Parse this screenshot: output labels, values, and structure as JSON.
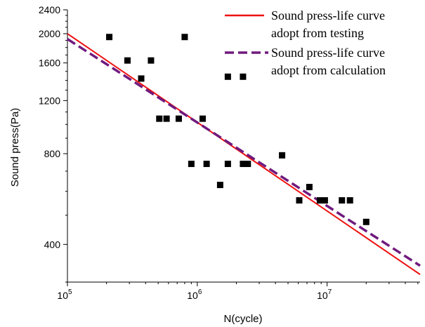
{
  "chart_data": {
    "type": "scatter",
    "xlabel": "N(cycle)",
    "ylabel": "Sound press(Pa)",
    "x_scale": "log",
    "y_scale": "log",
    "xlim": [
      100000,
      52000000
    ],
    "ylim": [
      300,
      2400
    ],
    "x_ticks": [
      {
        "value": 100000,
        "base": "10",
        "exp": "5"
      },
      {
        "value": 1000000,
        "base": "10",
        "exp": "6"
      },
      {
        "value": 10000000,
        "base": "10",
        "exp": "7"
      }
    ],
    "y_ticks": [
      {
        "value": 400,
        "label": "400"
      },
      {
        "value": 800,
        "label": "800"
      },
      {
        "value": 1200,
        "label": "1200"
      },
      {
        "value": 1600,
        "label": "1600"
      },
      {
        "value": 2000,
        "label": "2000"
      },
      {
        "value": 2400,
        "label": "2400"
      }
    ],
    "y_minor_ticks": [
      300,
      500,
      600,
      700,
      900,
      1000,
      1100,
      1300,
      1400,
      1500,
      1700,
      1800,
      1900,
      2100,
      2200,
      2300
    ],
    "points": [
      {
        "x": 210000,
        "y": 1950
      },
      {
        "x": 290000,
        "y": 1630
      },
      {
        "x": 370000,
        "y": 1420
      },
      {
        "x": 440000,
        "y": 1630
      },
      {
        "x": 510000,
        "y": 1045
      },
      {
        "x": 580000,
        "y": 1045
      },
      {
        "x": 720000,
        "y": 1045
      },
      {
        "x": 800000,
        "y": 1950
      },
      {
        "x": 900000,
        "y": 740
      },
      {
        "x": 1100000,
        "y": 1045
      },
      {
        "x": 1180000,
        "y": 740
      },
      {
        "x": 1500000,
        "y": 630
      },
      {
        "x": 1720000,
        "y": 1440
      },
      {
        "x": 1720000,
        "y": 740
      },
      {
        "x": 2250000,
        "y": 1440
      },
      {
        "x": 2250000,
        "y": 740
      },
      {
        "x": 2450000,
        "y": 740
      },
      {
        "x": 4500000,
        "y": 790
      },
      {
        "x": 6100000,
        "y": 560
      },
      {
        "x": 7300000,
        "y": 620
      },
      {
        "x": 8800000,
        "y": 560
      },
      {
        "x": 9600000,
        "y": 560
      },
      {
        "x": 13000000,
        "y": 560
      },
      {
        "x": 15000000,
        "y": 560
      },
      {
        "x": 20000000,
        "y": 475
      }
    ],
    "series": [
      {
        "name": "Sound press-life curve\nadopt from testing",
        "style": "solid",
        "color": "#ee1111",
        "x": [
          100000,
          52000000
        ],
        "y": [
          2000,
          318
        ]
      },
      {
        "name": "Sound press-life curve\nadopt from calculation",
        "style": "dashed",
        "color": "#701a7e",
        "x": [
          100000,
          52000000
        ],
        "y": [
          1920,
          340
        ]
      }
    ],
    "legend": {
      "placement": "top-right",
      "entries": [
        {
          "line1": "Sound press-life curve",
          "line2": "adopt from testing",
          "color": "#ee1111",
          "style": "solid"
        },
        {
          "line1": "Sound press-life curve",
          "line2": "adopt from calculation",
          "color": "#701a7e",
          "style": "dashed"
        }
      ]
    }
  }
}
